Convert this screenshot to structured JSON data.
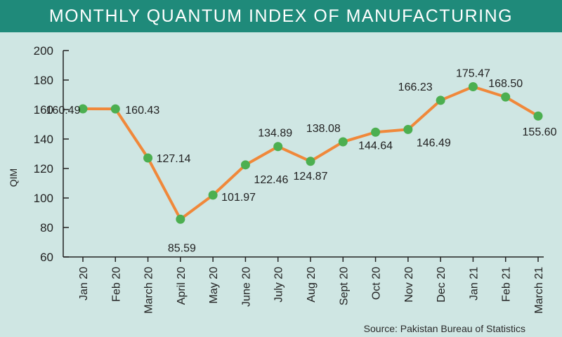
{
  "header": {
    "title": "MONTHLY QUANTUM INDEX OF MANUFACTURING"
  },
  "footer": {
    "source": "Source: Pakistan Bureau of Statistics"
  },
  "colors": {
    "header_bg": "#1f8a7a",
    "background": "#cfe6e3",
    "line": "#f0883a",
    "marker": "#4caf50"
  },
  "chart_data": {
    "type": "line",
    "title": "MONTHLY QUANTUM INDEX OF MANUFACTURING",
    "xlabel": "",
    "ylabel": "QIM",
    "ylim": [
      60,
      200
    ],
    "yticks": [
      60,
      80,
      100,
      120,
      140,
      160,
      180,
      200
    ],
    "grid": false,
    "categories": [
      "Jan 20",
      "Feb 20",
      "March 20",
      "April 20",
      "May 20",
      "June 20",
      "July 20",
      "Aug 20",
      "Sept 20",
      "Oct 20",
      "Nov 20",
      "Dec 20",
      "Jan 21",
      "Feb 21",
      "March 21"
    ],
    "series": [
      {
        "values": [
          160.49,
          160.43,
          127.14,
          85.59,
          101.97,
          122.46,
          134.89,
          124.87,
          138.08,
          144.64,
          146.49,
          166.23,
          175.47,
          168.5,
          155.6
        ],
        "labels": [
          "160.49",
          "160.43",
          "127.14",
          "85.59",
          "101.97",
          "122.46",
          "134.89",
          "124.87",
          "138.08",
          "144.64",
          "146.49",
          "166.23",
          "175.47",
          "168.50",
          "155.60"
        ]
      }
    ]
  }
}
